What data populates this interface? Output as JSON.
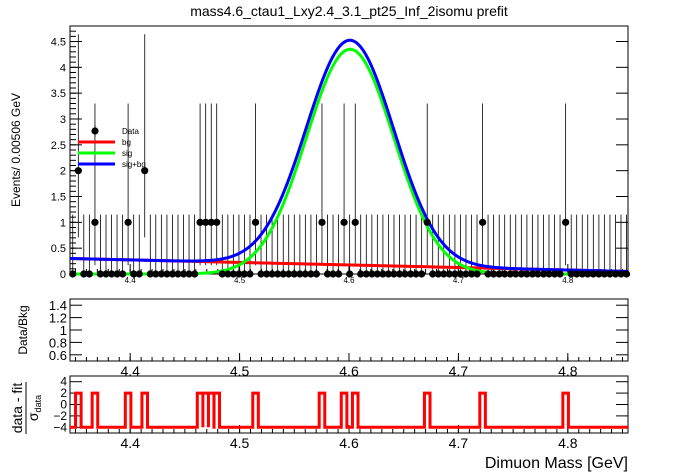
{
  "chart_data": [
    {
      "type": "line",
      "panel": "main",
      "title": "mass4.6_ctau1_Lxy2.4_3.1_pt25_Inf_2isomu   prefit",
      "ylabel": "Events/ 0.00506 GeV",
      "xlim": [
        4.345,
        4.855
      ],
      "ylim": [
        0,
        4.8
      ],
      "xticks": [
        "4.4",
        "4.5",
        "4.6",
        "4.7",
        "4.8"
      ],
      "yticks": [
        "0",
        "0.5",
        "1",
        "1.5",
        "2",
        "2.5",
        "3",
        "3.5",
        "4",
        "4.5"
      ],
      "legend": {
        "placement": "top-left",
        "entries": [
          "Data",
          "bg",
          "sig",
          "sig+bg"
        ]
      },
      "colors": {
        "data": "#000000",
        "bg": "#ff0000",
        "sig": "#00ff00",
        "sig+bg": "#0000ff"
      },
      "data_points": {
        "x": [
          4.3475,
          4.3526,
          4.3576,
          4.3627,
          4.3678,
          4.3728,
          4.3779,
          4.383,
          4.388,
          4.3931,
          4.3981,
          4.4032,
          4.4083,
          4.4133,
          4.4184,
          4.4234,
          4.4285,
          4.4336,
          4.4386,
          4.4437,
          4.4488,
          4.4538,
          4.4589,
          4.4639,
          4.469,
          4.4741,
          4.4791,
          4.4842,
          4.4893,
          4.4943,
          4.4994,
          4.5044,
          4.5095,
          4.5146,
          4.5196,
          4.5247,
          4.5297,
          4.5348,
          4.5399,
          4.5449,
          4.55,
          4.5551,
          4.5601,
          4.5652,
          4.5702,
          4.5753,
          4.5804,
          4.5854,
          4.5905,
          4.5955,
          4.6006,
          4.6057,
          4.6107,
          4.6158,
          4.6209,
          4.6259,
          4.631,
          4.636,
          4.6411,
          4.6462,
          4.6512,
          4.6563,
          4.6613,
          4.6664,
          4.6715,
          4.6765,
          4.6816,
          4.6866,
          4.6917,
          4.6968,
          4.7018,
          4.7069,
          4.712,
          4.717,
          4.7221,
          4.7271,
          4.7322,
          4.7373,
          4.7423,
          4.7474,
          4.7524,
          4.7575,
          4.7626,
          4.7676,
          4.7727,
          4.7778,
          4.7828,
          4.7879,
          4.7929,
          4.798,
          4.8031,
          4.8081,
          4.8132,
          4.8182,
          4.8233,
          4.8284,
          4.8334,
          4.8385,
          4.8436,
          4.8486,
          4.8537
        ],
        "y": [
          0,
          2,
          0,
          0,
          1,
          0,
          0,
          0,
          0,
          0,
          1,
          0,
          0,
          2,
          0,
          0,
          0,
          0,
          0,
          0,
          0,
          0,
          0,
          1,
          1,
          1,
          1,
          0,
          0,
          0,
          0,
          0,
          0,
          1,
          0,
          0,
          0,
          0,
          0,
          0,
          0,
          0,
          0,
          0,
          0,
          1,
          0,
          0,
          0,
          1,
          0,
          1,
          0,
          0,
          0,
          0,
          0,
          0,
          0,
          0,
          0,
          0,
          0,
          0,
          1,
          0,
          0,
          0,
          0,
          0,
          0,
          0,
          0,
          0,
          1,
          0,
          0,
          0,
          0,
          0,
          0,
          0,
          0,
          0,
          0,
          0,
          0,
          0,
          0,
          1,
          0,
          0,
          0,
          0,
          0,
          0,
          0,
          0,
          0,
          0,
          0
        ]
      },
      "series": [
        {
          "name": "bg",
          "model": {
            "kind": "linear",
            "y_at_xmin": 0.3,
            "y_at_xmax": 0.05
          }
        },
        {
          "name": "sig",
          "model": {
            "kind": "gaussian",
            "amplitude": 4.35,
            "mean": 4.601,
            "sigma": 0.04
          }
        },
        {
          "name": "sig+bg",
          "model": {
            "kind": "sum",
            "of": [
              "bg",
              "sig"
            ]
          }
        }
      ]
    },
    {
      "type": "line",
      "panel": "ratio",
      "ylabel": "Data/Bkg",
      "xlim": [
        4.345,
        4.855
      ],
      "ylim": [
        0.5,
        1.5
      ],
      "xticks": [
        "4.4",
        "4.5",
        "4.6",
        "4.7",
        "4.8"
      ],
      "yticks": [
        "0.6",
        "0.8",
        "1",
        "1.2",
        "1.4"
      ]
    },
    {
      "type": "line",
      "panel": "pull",
      "ylabel_top": "data - fit",
      "ylabel_bottom_sigma": "σ",
      "ylabel_bottom_sub": "data",
      "xlabel": "Dimuon Mass [GeV]",
      "xlim": [
        4.345,
        4.855
      ],
      "ylim": [
        -5,
        5
      ],
      "xticks": [
        "4.4",
        "4.5",
        "4.6",
        "4.7",
        "4.8"
      ],
      "yticks": [
        "−4",
        "−2",
        "0",
        "2",
        "4"
      ],
      "pull": {
        "base": -4,
        "spike": 2
      },
      "color": "#ff0000"
    }
  ]
}
